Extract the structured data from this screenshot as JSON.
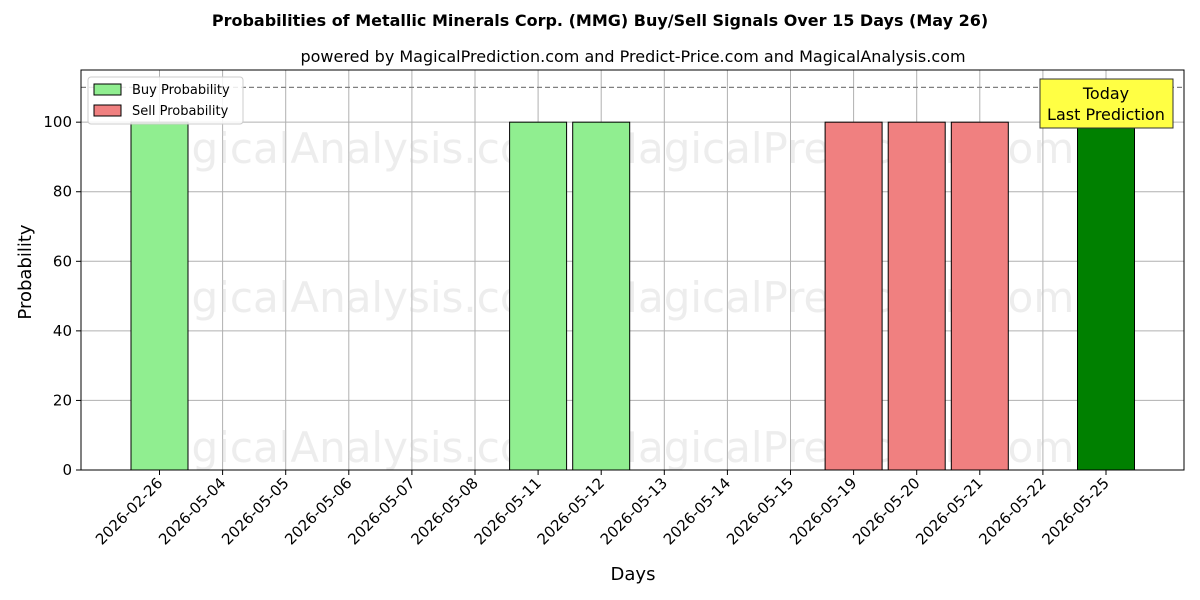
{
  "chart_data": {
    "type": "bar",
    "title": "Probabilities of Metallic Minerals Corp. (MMG) Buy/Sell Signals Over 15 Days (May 26)",
    "subtitle": "powered by MagicalPrediction.com and Predict-Price.com and MagicalAnalysis.com",
    "xlabel": "Days",
    "ylabel": "Probability",
    "ylim": [
      0,
      115
    ],
    "yticks": [
      0,
      20,
      40,
      60,
      80,
      100
    ],
    "grid": true,
    "legend_position": "top-left",
    "categories": [
      "2026-02-26",
      "2026-05-04",
      "2026-05-05",
      "2026-05-06",
      "2026-05-07",
      "2026-05-08",
      "2026-05-11",
      "2026-05-12",
      "2026-05-13",
      "2026-05-14",
      "2026-05-15",
      "2026-05-19",
      "2026-05-20",
      "2026-05-21",
      "2026-05-22",
      "2026-05-25"
    ],
    "series": [
      {
        "name": "Buy Probability",
        "color": "#90ee90",
        "values": [
          100,
          0,
          0,
          0,
          0,
          0,
          100,
          100,
          0,
          0,
          0,
          0,
          0,
          0,
          0,
          0
        ]
      },
      {
        "name": "Sell Probability",
        "color": "#f08080",
        "values": [
          0,
          0,
          0,
          0,
          0,
          0,
          0,
          0,
          0,
          0,
          0,
          100,
          100,
          100,
          0,
          0
        ]
      }
    ],
    "highlight": {
      "category": "2026-05-25",
      "value": 100,
      "color": "#008000"
    },
    "reference_line": {
      "y": 110,
      "style": "dashed",
      "color": "#808080"
    },
    "annotation": {
      "lines": [
        "Today",
        "Last Prediction"
      ],
      "background": "#ffff44"
    },
    "watermarks": [
      {
        "text": "MagicalAnalysis.com",
        "row": 0,
        "col": 0
      },
      {
        "text": "MagicalPrediction.com",
        "row": 0,
        "col": 1
      },
      {
        "text": "MagicalAnalysis.com",
        "row": 1,
        "col": 0
      },
      {
        "text": "MagicalPrediction.com",
        "row": 1,
        "col": 1
      },
      {
        "text": "MagicalAnalysis.com",
        "row": 2,
        "col": 0
      },
      {
        "text": "MagicalPrediction.com",
        "row": 2,
        "col": 1
      }
    ]
  }
}
